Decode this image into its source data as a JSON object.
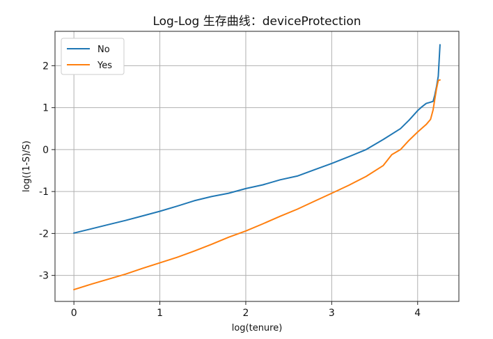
{
  "chart_data": {
    "type": "line",
    "title": "Log-Log 生存曲线：deviceProtection",
    "xlabel": "log(tenure)",
    "ylabel": "log((1-S)/S)",
    "xlim": [
      -0.22,
      4.48
    ],
    "ylim": [
      -3.62,
      2.82
    ],
    "xticks": [
      0,
      1,
      2,
      3,
      4
    ],
    "xtick_labels": [
      "0",
      "1",
      "2",
      "3",
      "4"
    ],
    "yticks": [
      -3,
      -2,
      -1,
      0,
      1,
      2
    ],
    "ytick_labels": [
      "-3",
      "-2",
      "-1",
      "0",
      "1",
      "2"
    ],
    "grid": true,
    "legend": {
      "position": "top-left",
      "entries": [
        "No",
        "Yes"
      ]
    },
    "series": [
      {
        "name": "No",
        "color": "#1f77b4",
        "x": [
          0,
          0.2,
          0.4,
          0.6,
          0.8,
          1.0,
          1.2,
          1.4,
          1.6,
          1.8,
          2.0,
          2.2,
          2.4,
          2.6,
          2.8,
          3.0,
          3.2,
          3.4,
          3.6,
          3.8,
          3.9,
          4.0,
          4.05,
          4.1,
          4.15,
          4.18,
          4.2,
          4.22,
          4.24,
          4.26
        ],
        "y": [
          -1.99,
          -1.89,
          -1.79,
          -1.69,
          -1.58,
          -1.47,
          -1.35,
          -1.22,
          -1.12,
          -1.04,
          -0.93,
          -0.84,
          -0.72,
          -0.63,
          -0.48,
          -0.33,
          -0.17,
          0.0,
          0.24,
          0.5,
          0.7,
          0.93,
          1.02,
          1.1,
          1.13,
          1.15,
          1.3,
          1.5,
          1.75,
          2.5
        ]
      },
      {
        "name": "Yes",
        "color": "#ff7f0e",
        "x": [
          0,
          0.2,
          0.4,
          0.6,
          0.8,
          1.0,
          1.2,
          1.4,
          1.6,
          1.8,
          2.0,
          2.2,
          2.4,
          2.6,
          2.8,
          3.0,
          3.2,
          3.4,
          3.6,
          3.7,
          3.8,
          3.9,
          4.0,
          4.1,
          4.15,
          4.18,
          4.2,
          4.22,
          4.24,
          4.26
        ],
        "y": [
          -3.34,
          -3.21,
          -3.09,
          -2.97,
          -2.83,
          -2.7,
          -2.57,
          -2.42,
          -2.26,
          -2.09,
          -1.94,
          -1.77,
          -1.59,
          -1.42,
          -1.23,
          -1.04,
          -0.85,
          -0.64,
          -0.38,
          -0.12,
          0.0,
          0.22,
          0.42,
          0.6,
          0.72,
          0.95,
          1.2,
          1.45,
          1.65,
          1.66
        ]
      }
    ]
  }
}
